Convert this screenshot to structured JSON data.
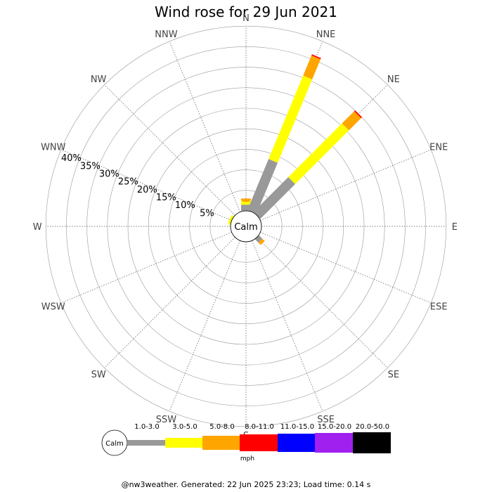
{
  "title": "Wind rose for 29 Jun 2021",
  "footer": "@nw3weather. Generated: 22 Jun 2025 23:23; Load time: 0.14 s",
  "chart_data": {
    "type": "wind-rose",
    "calm_label": "Calm",
    "unit": "mph",
    "radial_ticks": [
      "5%",
      "10%",
      "15%",
      "20%",
      "25%",
      "30%",
      "35%",
      "40%"
    ],
    "radial_tick_values": [
      5,
      10,
      15,
      20,
      25,
      30,
      35,
      40
    ],
    "radial_max": 45,
    "grid_circles": 9,
    "directions": [
      "N",
      "NNE",
      "NE",
      "ENE",
      "E",
      "ESE",
      "SE",
      "SSE",
      "S",
      "SSW",
      "SW",
      "WSW",
      "W",
      "WNW",
      "NW",
      "NNW"
    ],
    "speed_bins": [
      {
        "label": "1.0-3.0",
        "color": "#999999"
      },
      {
        "label": "3.0-5.0",
        "color": "#ffff00"
      },
      {
        "label": "5.0-8.0",
        "color": "#ffa500"
      },
      {
        "label": "8.0-11.0",
        "color": "#ff0000"
      },
      {
        "label": "11.0-15.0",
        "color": "#0000ff"
      },
      {
        "label": "15.0-20.0",
        "color": "#a020f0"
      },
      {
        "label": "20.0-50.0",
        "color": "#000000"
      }
    ],
    "cumulative_percent": {
      "N": [
        1.5,
        2.5,
        3.0,
        3.0,
        3.0,
        3.0,
        3.0
      ],
      "NNE": [
        13.5,
        35.5,
        40.8,
        41.1,
        41.1,
        41.1,
        41.1
      ],
      "NE": [
        12.0,
        30.5,
        34.7,
        35.0,
        35.0,
        35.0,
        35.0
      ],
      "ENE": [
        0,
        0,
        0,
        0,
        0,
        0,
        0
      ],
      "E": [
        0,
        0,
        0,
        0,
        0,
        0,
        0
      ],
      "ESE": [
        0,
        0,
        0,
        0,
        0,
        0,
        0
      ],
      "SE": [
        0,
        0,
        0,
        0,
        0,
        0,
        0
      ],
      "SSE": [
        0,
        0,
        0,
        0,
        0,
        0,
        0
      ],
      "S": [
        0,
        0,
        0,
        0,
        0,
        0,
        0
      ],
      "SSW": [
        0,
        0,
        0,
        0,
        0,
        0,
        0
      ],
      "SW": [
        0,
        0,
        0,
        0,
        0,
        0,
        0
      ],
      "WSW": [
        0,
        0,
        0,
        0,
        0,
        0,
        0
      ],
      "W": [
        0,
        0,
        0,
        0,
        0,
        0,
        0
      ],
      "WNW": [
        0,
        0.5,
        0.5,
        0.5,
        0.5,
        0.5,
        0.5
      ],
      "NW": [
        0,
        0,
        0,
        0,
        0,
        0,
        0
      ],
      "NNW": [
        0,
        0,
        0,
        0,
        0,
        0,
        0
      ],
      "ESE_small": [
        0,
        0,
        0,
        0,
        0,
        0,
        0
      ]
    },
    "extra_wedges": {
      "ENE_near": [
        1.5,
        2.5,
        3.0,
        3.0,
        3.0,
        3.0,
        3.0
      ]
    }
  }
}
